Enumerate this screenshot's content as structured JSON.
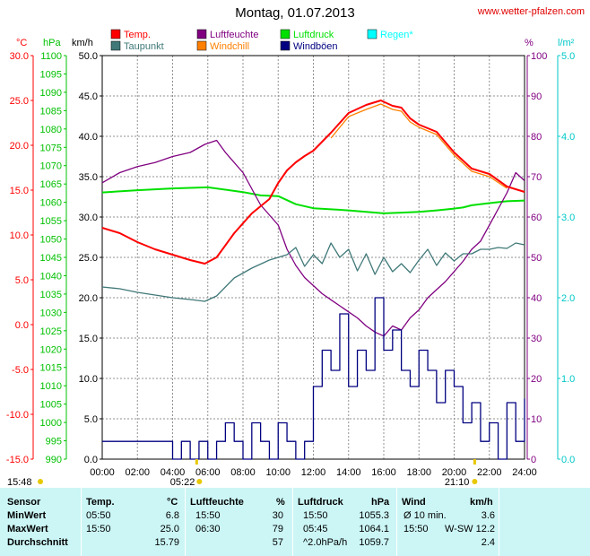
{
  "header": {
    "title": "Montag, 01.07.2013",
    "url": "www.wetter-pfalzen.com"
  },
  "legend": [
    {
      "label": "Temp.",
      "color": "#ff0000"
    },
    {
      "label": "Luftfeuchte",
      "color": "#800080"
    },
    {
      "label": "Luftdruck",
      "color": "#00e000"
    },
    {
      "label": "Regen*",
      "color": "#00ffff"
    },
    {
      "label": "Taupunkt",
      "color": "#407878"
    },
    {
      "label": "Windchill",
      "color": "#ff8000"
    },
    {
      "label": "Windböen",
      "color": "#000080"
    }
  ],
  "axis_units": {
    "temp": "°C",
    "pressure": "hPa",
    "wind": "km/h",
    "humidity": "%",
    "rain": "l/m²"
  },
  "sun": {
    "sunrise": "05:22",
    "sunset": "21:10",
    "daylength": "15:48"
  },
  "chart_data": {
    "type": "line",
    "title": "Montag, 01.07.2013",
    "x_ticks": [
      "00:00",
      "02:00",
      "04:00",
      "06:00",
      "08:00",
      "10:00",
      "12:00",
      "14:00",
      "16:00",
      "18:00",
      "20:00",
      "22:00",
      "24:00"
    ],
    "xlim": [
      0,
      24
    ],
    "axes": {
      "temp": {
        "label": "°C",
        "range": [
          -15,
          30
        ],
        "ticks": [
          "-15.0",
          "-10.0",
          "-5.0",
          "0.0",
          "5.0",
          "10.0",
          "15.0",
          "20.0",
          "25.0",
          "30.0"
        ]
      },
      "pressure": {
        "label": "hPa",
        "range": [
          990,
          1100
        ],
        "ticks": [
          "990",
          "995",
          "1000",
          "1005",
          "1010",
          "1015",
          "1020",
          "1025",
          "1030",
          "1035",
          "1040",
          "1045",
          "1050",
          "1055",
          "1060",
          "1065",
          "1070",
          "1075",
          "1080",
          "1085",
          "1090",
          "1095",
          "1100"
        ]
      },
      "wind": {
        "label": "km/h",
        "range": [
          0,
          50
        ],
        "ticks": [
          "0.0",
          "5.0",
          "10.0",
          "15.0",
          "20.0",
          "25.0",
          "30.0",
          "35.0",
          "40.0",
          "45.0",
          "50.0"
        ]
      },
      "humidity": {
        "label": "%",
        "range": [
          0,
          100
        ],
        "ticks": [
          "0",
          "10",
          "20",
          "30",
          "40",
          "50",
          "60",
          "70",
          "80",
          "90",
          "100"
        ]
      },
      "rain": {
        "label": "l/m²",
        "range": [
          0,
          5
        ],
        "ticks": [
          "0.0",
          "1.0",
          "2.0",
          "3.0",
          "4.0",
          "5.0"
        ]
      }
    },
    "series": [
      {
        "name": "Temp.",
        "axis": "temp",
        "color": "#ff0000",
        "x": [
          0,
          1,
          2,
          3,
          4,
          5,
          5.83,
          6.5,
          7.5,
          8.5,
          9.5,
          10,
          10.5,
          11,
          11.5,
          12,
          13,
          14,
          15,
          15.83,
          16.5,
          17,
          17.5,
          18,
          19,
          20,
          21,
          22,
          23,
          24
        ],
        "y": [
          10.8,
          10.2,
          9.2,
          8.4,
          7.8,
          7.2,
          6.8,
          7.5,
          10.2,
          12.4,
          14.0,
          15.8,
          17.2,
          18.1,
          18.8,
          19.4,
          21.4,
          23.6,
          24.5,
          25.0,
          24.4,
          24.2,
          23.0,
          22.3,
          21.5,
          19.2,
          17.4,
          16.8,
          15.4,
          14.8
        ]
      },
      {
        "name": "Windchill",
        "axis": "temp",
        "color": "#ff8000",
        "x": [
          13,
          14,
          15,
          15.83,
          16.5,
          17,
          17.5,
          18,
          19,
          20,
          21,
          22,
          23
        ],
        "y": [
          20.8,
          23.2,
          24.0,
          24.6,
          24.0,
          23.8,
          22.6,
          22.0,
          21.2,
          18.9,
          17.1,
          16.5,
          15.2
        ]
      },
      {
        "name": "Taupunkt",
        "axis": "temp",
        "color": "#407878",
        "x": [
          0,
          1,
          2,
          3,
          4,
          5,
          5.83,
          6.5,
          7.5,
          8.5,
          9.5,
          10.5,
          11,
          11.5,
          12,
          12.5,
          13,
          13.5,
          14,
          14.5,
          15,
          15.5,
          16,
          16.5,
          17,
          17.5,
          18,
          18.5,
          19,
          19.5,
          20,
          20.5,
          21,
          21.5,
          22,
          22.5,
          23,
          23.5,
          24
        ],
        "y": [
          4.2,
          4.0,
          3.6,
          3.3,
          3.0,
          2.8,
          2.6,
          3.2,
          5.2,
          6.3,
          7.2,
          7.8,
          8.6,
          6.5,
          7.8,
          6.8,
          9.1,
          7.5,
          8.4,
          6.0,
          7.9,
          5.6,
          7.5,
          5.9,
          6.8,
          5.8,
          7.2,
          8.4,
          6.6,
          8.0,
          7.1,
          7.9,
          7.9,
          8.4,
          8.4,
          8.6,
          8.5,
          9.1,
          8.9
        ]
      },
      {
        "name": "Luftfeuchte",
        "axis": "humidity",
        "color": "#800080",
        "x": [
          0,
          1,
          2,
          3,
          4,
          5,
          5.83,
          6.5,
          7,
          8,
          9,
          10,
          10.5,
          11,
          11.5,
          12,
          12.5,
          13,
          13.5,
          14,
          14.5,
          15,
          15.5,
          16,
          16.5,
          17,
          17.5,
          18,
          18.5,
          19,
          19.5,
          20,
          20.5,
          21,
          21.5,
          22,
          22.5,
          23,
          23.5,
          24
        ],
        "y": [
          68.5,
          71,
          72.5,
          73.5,
          75,
          76,
          78,
          79,
          76,
          71,
          63,
          58,
          52,
          48,
          45,
          43,
          41,
          39.5,
          38,
          36.5,
          35,
          33,
          31.5,
          30.5,
          33,
          32,
          35,
          37,
          40,
          42,
          44,
          46.5,
          49,
          52,
          54,
          58,
          62,
          66,
          71,
          69
        ]
      },
      {
        "name": "Luftdruck",
        "axis": "pressure",
        "color": "#00e000",
        "x": [
          0,
          2,
          4,
          6,
          8,
          9,
          10,
          11,
          12,
          14,
          15,
          16,
          17,
          18,
          19,
          20,
          20.5,
          21,
          22,
          23,
          24
        ],
        "y": [
          1062.7,
          1063.3,
          1063.8,
          1064.1,
          1062.8,
          1061.9,
          1061.7,
          1059.5,
          1058.4,
          1057.8,
          1057.4,
          1057.0,
          1057.2,
          1057.4,
          1057.8,
          1058.3,
          1058.6,
          1059.2,
          1059.8,
          1060.3,
          1060.5
        ]
      },
      {
        "name": "Windböen",
        "axis": "wind",
        "color": "#000080",
        "x": [
          0,
          1,
          2,
          3,
          3.5,
          4,
          4.5,
          5,
          5.5,
          6,
          6.5,
          7,
          7.5,
          8,
          8.5,
          9,
          9.5,
          10,
          10.5,
          11,
          11.5,
          12,
          12.5,
          13,
          13.5,
          14,
          14.5,
          15,
          15.5,
          16,
          16.5,
          17,
          17.5,
          18,
          18.5,
          19,
          19.5,
          20,
          20.5,
          21,
          21.5,
          22,
          22.5,
          23,
          23.5,
          24
        ],
        "y": [
          2.2,
          2.2,
          2.2,
          2.2,
          2.2,
          0,
          2.2,
          0,
          2.2,
          0,
          2.2,
          4.5,
          2.2,
          0,
          4.5,
          2.2,
          0,
          4.5,
          2.2,
          0,
          2.2,
          9,
          13.5,
          11,
          18,
          9,
          13.5,
          11,
          20,
          13.5,
          16,
          11,
          9,
          13.5,
          11,
          7,
          11,
          9,
          4.5,
          7,
          2.2,
          4.5,
          0,
          7,
          2.2,
          7.5
        ]
      }
    ]
  },
  "table": {
    "headers": {
      "sensor": "Sensor",
      "temp": "Temp.",
      "temp_unit": "°C",
      "hum": "Luftfeuchte",
      "hum_unit": "%",
      "press": "Luftdruck",
      "press_unit": "hPa",
      "wind": "Wind",
      "wind_unit": "km/h"
    },
    "rows": [
      {
        "label": "MinWert",
        "t_time": "05:50",
        "t_val": "6.8",
        "h_time": "15:50",
        "h_val": "30",
        "p_time": "15:50",
        "p_val": "1055.3",
        "w_time": "Ø 10 min.",
        "w_dir": "",
        "w_val": "3.6"
      },
      {
        "label": "MaxWert",
        "t_time": "15:50",
        "t_val": "25.0",
        "h_time": "06:30",
        "h_val": "79",
        "p_time": "05:45",
        "p_val": "1064.1",
        "w_time": "15:50",
        "w_dir": "W-SW",
        "w_val": "12.2"
      },
      {
        "label": "Durchschnitt",
        "t_time": "",
        "t_val": "15.79",
        "h_time": "",
        "h_val": "57",
        "p_time": "^2.0hPa/h",
        "p_val": "1059.7",
        "w_time": "",
        "w_dir": "",
        "w_val": "2.4"
      }
    ]
  }
}
